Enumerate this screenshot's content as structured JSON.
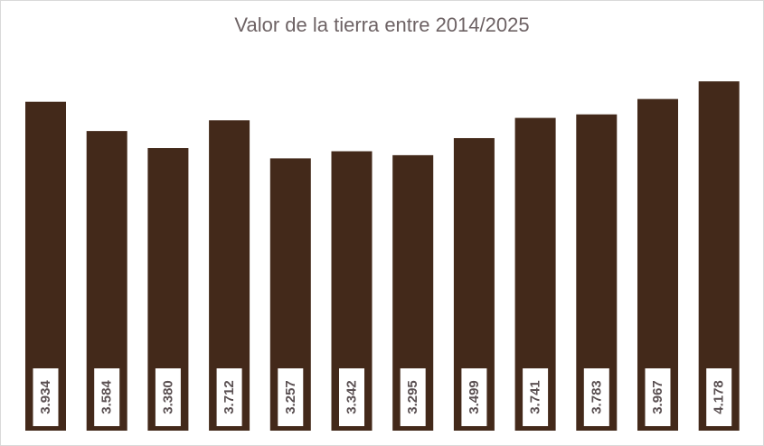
{
  "chart_data": {
    "type": "bar",
    "title": "Valor de la tierra entre 2014/2025",
    "xlabel": "",
    "ylabel": "",
    "ylim": [
      0,
      4.5
    ],
    "grid": false,
    "legend": "none",
    "bar_color": "#43291a",
    "label_box_color": "#ffffff",
    "values": [
      3.934,
      3.584,
      3.38,
      3.712,
      3.257,
      3.342,
      3.295,
      3.499,
      3.741,
      3.783,
      3.967,
      4.178
    ],
    "data_labels": [
      "3.934",
      "3.584",
      "3.380",
      "3.712",
      "3.257",
      "3.342",
      "3.295",
      "3.499",
      "3.741",
      "3.783",
      "3.967",
      "4.178"
    ]
  }
}
